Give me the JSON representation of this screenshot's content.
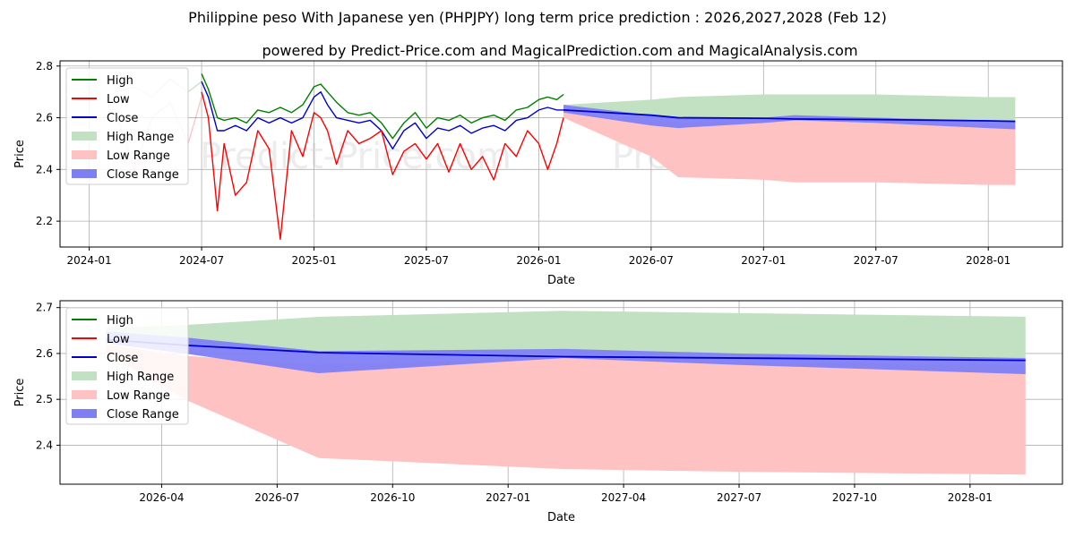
{
  "title": "Philippine peso With Japanese yen (PHPJPY) long term price prediction : 2026,2027,2028 (Feb 12)",
  "subtitle": "powered by Predict-Price.com and MagicalPrediction.com and MagicalAnalysis.com",
  "watermark": "Predict-Price.com",
  "colors": {
    "high": "#008000",
    "low": "#ff0000",
    "close": "#0000cc",
    "high_range": "#c2e0c2",
    "low_range": "#ffc2c2",
    "close_range": "#7f7ff5",
    "grid": "#b0b0b0",
    "watermark": "#ececec"
  },
  "legend": {
    "items": [
      {
        "label": "High",
        "kind": "line",
        "color_key": "high"
      },
      {
        "label": "Low",
        "kind": "line",
        "color_key": "low"
      },
      {
        "label": "Close",
        "kind": "line",
        "color_key": "close"
      },
      {
        "label": "High Range",
        "kind": "patch",
        "color_key": "high_range"
      },
      {
        "label": "Low Range",
        "kind": "patch",
        "color_key": "low_range"
      },
      {
        "label": "Close Range",
        "kind": "patch",
        "color_key": "close_range"
      }
    ]
  },
  "chart_data": [
    {
      "type": "line",
      "name": "overview",
      "xlabel": "Date",
      "ylabel": "Price",
      "xlim": [
        2023.87,
        2028.33
      ],
      "ylim": [
        2.1,
        2.82
      ],
      "grid": true,
      "legend_position": "top-left",
      "xticks": [
        {
          "value": 2024.0,
          "label": "2024-01"
        },
        {
          "value": 2024.5,
          "label": "2024-07"
        },
        {
          "value": 2025.0,
          "label": "2025-01"
        },
        {
          "value": 2025.5,
          "label": "2025-07"
        },
        {
          "value": 2026.0,
          "label": "2026-01"
        },
        {
          "value": 2026.5,
          "label": "2026-07"
        },
        {
          "value": 2027.0,
          "label": "2027-01"
        },
        {
          "value": 2027.5,
          "label": "2027-07"
        },
        {
          "value": 2028.0,
          "label": "2028-01"
        }
      ],
      "yticks": [
        {
          "value": 2.2,
          "label": "2.2"
        },
        {
          "value": 2.4,
          "label": "2.4"
        },
        {
          "value": 2.6,
          "label": "2.6"
        },
        {
          "value": 2.8,
          "label": "2.8"
        }
      ],
      "history": {
        "x": [
          2024.5,
          2024.53,
          2024.57,
          2024.6,
          2024.65,
          2024.7,
          2024.75,
          2024.8,
          2024.85,
          2024.9,
          2024.95,
          2025.0,
          2025.03,
          2025.06,
          2025.1,
          2025.15,
          2025.2,
          2025.25,
          2025.3,
          2025.35,
          2025.4,
          2025.45,
          2025.5,
          2025.55,
          2025.6,
          2025.65,
          2025.7,
          2025.75,
          2025.8,
          2025.85,
          2025.9,
          2025.95,
          2026.0,
          2026.04,
          2026.08,
          2026.11
        ],
        "high": [
          2.77,
          2.71,
          2.6,
          2.59,
          2.6,
          2.58,
          2.63,
          2.62,
          2.64,
          2.62,
          2.65,
          2.72,
          2.73,
          2.7,
          2.66,
          2.62,
          2.61,
          2.62,
          2.58,
          2.52,
          2.58,
          2.62,
          2.56,
          2.6,
          2.59,
          2.61,
          2.58,
          2.6,
          2.61,
          2.59,
          2.63,
          2.64,
          2.67,
          2.68,
          2.67,
          2.69
        ],
        "low": [
          2.7,
          2.6,
          2.24,
          2.5,
          2.3,
          2.35,
          2.55,
          2.48,
          2.13,
          2.55,
          2.45,
          2.62,
          2.6,
          2.55,
          2.42,
          2.55,
          2.5,
          2.52,
          2.55,
          2.38,
          2.47,
          2.5,
          2.44,
          2.5,
          2.39,
          2.5,
          2.4,
          2.45,
          2.36,
          2.5,
          2.45,
          2.55,
          2.5,
          2.4,
          2.5,
          2.6
        ],
        "close": [
          2.74,
          2.68,
          2.55,
          2.55,
          2.57,
          2.55,
          2.6,
          2.58,
          2.6,
          2.58,
          2.6,
          2.68,
          2.7,
          2.65,
          2.6,
          2.59,
          2.58,
          2.59,
          2.55,
          2.48,
          2.55,
          2.58,
          2.52,
          2.56,
          2.55,
          2.57,
          2.54,
          2.56,
          2.57,
          2.55,
          2.59,
          2.6,
          2.63,
          2.64,
          2.63,
          2.63
        ]
      },
      "faded_history": {
        "x": [
          2024.12,
          2024.2,
          2024.28,
          2024.36,
          2024.44,
          2024.5
        ],
        "high": [
          2.7,
          2.72,
          2.68,
          2.75,
          2.7,
          2.74
        ],
        "low": [
          2.62,
          2.4,
          2.6,
          2.66,
          2.5,
          2.68
        ]
      },
      "forecast": {
        "x": [
          2026.11,
          2026.5,
          2026.62,
          2027.0,
          2027.14,
          2027.5,
          2028.0,
          2028.12
        ],
        "high_upper": [
          2.65,
          2.67,
          2.68,
          2.69,
          2.69,
          2.69,
          2.68,
          2.68
        ],
        "high_lower": [
          2.63,
          2.61,
          2.6,
          2.6,
          2.6,
          2.6,
          2.59,
          2.59
        ],
        "low_upper": [
          2.62,
          2.59,
          2.58,
          2.59,
          2.59,
          2.58,
          2.57,
          2.57
        ],
        "low_lower": [
          2.6,
          2.45,
          2.37,
          2.36,
          2.35,
          2.35,
          2.34,
          2.34
        ],
        "close_upper": [
          2.65,
          2.61,
          2.6,
          2.6,
          2.61,
          2.6,
          2.59,
          2.59
        ],
        "close_lower": [
          2.62,
          2.57,
          2.56,
          2.58,
          2.59,
          2.58,
          2.56,
          2.555
        ],
        "close": [
          2.63,
          2.61,
          2.6,
          2.598,
          2.595,
          2.593,
          2.588,
          2.586
        ]
      }
    },
    {
      "type": "area",
      "name": "forecast-detail",
      "xlabel": "Date",
      "ylabel": "Price",
      "xlim": [
        2026.03,
        2028.2
      ],
      "ylim": [
        2.315,
        2.715
      ],
      "grid": true,
      "legend_position": "top-left",
      "xticks": [
        {
          "value": 2026.25,
          "label": "2026-04"
        },
        {
          "value": 2026.5,
          "label": "2026-07"
        },
        {
          "value": 2026.75,
          "label": "2026-10"
        },
        {
          "value": 2027.0,
          "label": "2027-01"
        },
        {
          "value": 2027.25,
          "label": "2027-04"
        },
        {
          "value": 2027.5,
          "label": "2027-07"
        },
        {
          "value": 2027.75,
          "label": "2027-10"
        },
        {
          "value": 2028.0,
          "label": "2028-01"
        }
      ],
      "yticks": [
        {
          "value": 2.4,
          "label": "2.4"
        },
        {
          "value": 2.5,
          "label": "2.5"
        },
        {
          "value": 2.6,
          "label": "2.6"
        },
        {
          "value": 2.7,
          "label": "2.7"
        }
      ],
      "forecast": {
        "x": [
          2026.13,
          2026.3,
          2026.59,
          2027.12,
          2027.5,
          2028.12
        ],
        "high_upper": [
          2.655,
          2.662,
          2.68,
          2.693,
          2.688,
          2.68
        ],
        "high_lower": [
          2.63,
          2.615,
          2.6,
          2.598,
          2.596,
          2.59
        ],
        "low_upper": [
          2.62,
          2.595,
          2.575,
          2.59,
          2.58,
          2.575
        ],
        "low_lower": [
          2.6,
          2.5,
          2.372,
          2.348,
          2.342,
          2.336
        ],
        "close_upper": [
          2.648,
          2.635,
          2.605,
          2.61,
          2.6,
          2.59
        ],
        "close_lower": [
          2.622,
          2.6,
          2.557,
          2.59,
          2.575,
          2.555
        ],
        "close": [
          2.63,
          2.618,
          2.602,
          2.593,
          2.59,
          2.585
        ]
      }
    }
  ]
}
